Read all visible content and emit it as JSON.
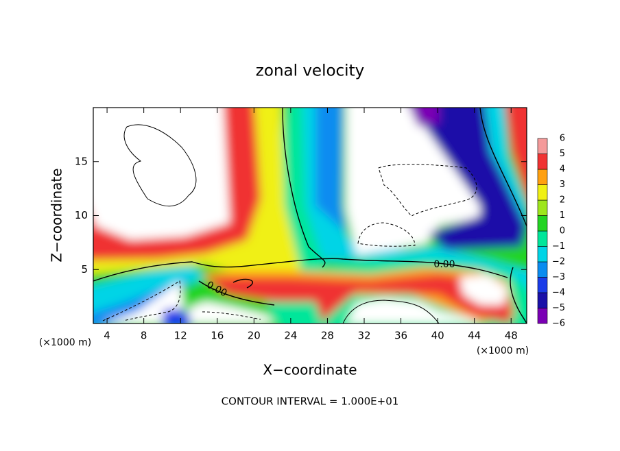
{
  "chart_data": {
    "type": "contour",
    "title": "zonal velocity",
    "x_label": "X−coordinate",
    "y_label": "Z−coordinate",
    "x_unit_labels": [
      "(×1000 m)",
      "(×1000 m)"
    ],
    "footer": "CONTOUR INTERVAL = 1.000E+01",
    "contour_labels": [
      "0.00",
      "0.00"
    ],
    "xlim": [
      2.5,
      49.7
    ],
    "xticks": [
      4,
      8,
      12,
      16,
      20,
      24,
      28,
      32,
      36,
      40,
      44,
      48
    ],
    "ylim": [
      0,
      20
    ],
    "yticks": [
      5,
      10,
      15
    ],
    "colorbar": {
      "levels": [
        {
          "value": -6,
          "label": "−6"
        },
        {
          "value": -5,
          "label": "−5"
        },
        {
          "value": -4,
          "label": "−4"
        },
        {
          "value": -3,
          "label": "−3"
        },
        {
          "value": -2,
          "label": "−2"
        },
        {
          "value": -1,
          "label": "−1"
        },
        0,
        1,
        2,
        3,
        4,
        5,
        6
      ],
      "colors": [
        "#7a00b4",
        "#1a10a8",
        "#1a3ce8",
        "#0a8cf0",
        "#00d4e6",
        "#00e69a",
        "#22d422",
        "#9ee61c",
        "#f0f014",
        "#ffa010",
        "#f03232",
        "#f49a9a"
      ]
    }
  }
}
